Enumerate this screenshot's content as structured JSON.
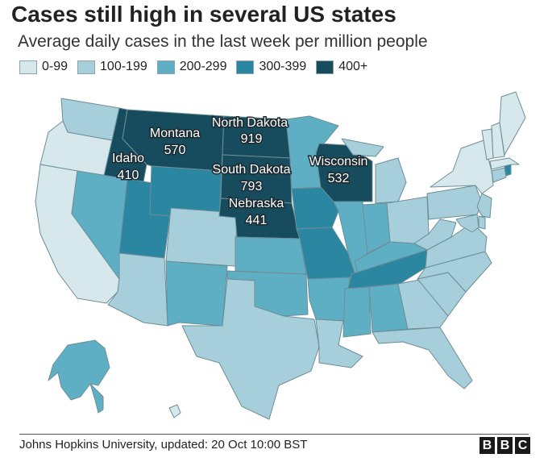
{
  "title": "Cases still high in several US states",
  "subtitle": "Average daily cases in the last week per million people",
  "legend": [
    {
      "label": "0-99",
      "color": "#d6e8ec"
    },
    {
      "label": "100-199",
      "color": "#a6cfdb"
    },
    {
      "label": "200-299",
      "color": "#5fafc4"
    },
    {
      "label": "300-399",
      "color": "#2b86a2"
    },
    {
      "label": "400+",
      "color": "#164c5e"
    }
  ],
  "states": [
    {
      "name": "WA",
      "bin": 1
    },
    {
      "name": "OR",
      "bin": 0
    },
    {
      "name": "CA",
      "bin": 0
    },
    {
      "name": "ID",
      "bin": 4
    },
    {
      "name": "NV",
      "bin": 2
    },
    {
      "name": "UT",
      "bin": 3
    },
    {
      "name": "AZ",
      "bin": 1
    },
    {
      "name": "MT",
      "bin": 4
    },
    {
      "name": "WY",
      "bin": 3
    },
    {
      "name": "CO",
      "bin": 1
    },
    {
      "name": "NM",
      "bin": 2
    },
    {
      "name": "ND",
      "bin": 4
    },
    {
      "name": "SD",
      "bin": 4
    },
    {
      "name": "NE",
      "bin": 4
    },
    {
      "name": "KS",
      "bin": 2
    },
    {
      "name": "OK",
      "bin": 2
    },
    {
      "name": "TX",
      "bin": 1
    },
    {
      "name": "MN",
      "bin": 2
    },
    {
      "name": "IA",
      "bin": 3
    },
    {
      "name": "MO",
      "bin": 3
    },
    {
      "name": "AR",
      "bin": 2
    },
    {
      "name": "LA",
      "bin": 1
    },
    {
      "name": "WI",
      "bin": 4
    },
    {
      "name": "IL",
      "bin": 2
    },
    {
      "name": "MI",
      "bin": 1
    },
    {
      "name": "IN",
      "bin": 2
    },
    {
      "name": "OH",
      "bin": 1
    },
    {
      "name": "KY",
      "bin": 2
    },
    {
      "name": "TN",
      "bin": 3
    },
    {
      "name": "MS",
      "bin": 2
    },
    {
      "name": "AL",
      "bin": 2
    },
    {
      "name": "GA",
      "bin": 1
    },
    {
      "name": "FL",
      "bin": 1
    },
    {
      "name": "SC",
      "bin": 1
    },
    {
      "name": "NC",
      "bin": 1
    },
    {
      "name": "VA",
      "bin": 1
    },
    {
      "name": "WV",
      "bin": 1
    },
    {
      "name": "PA",
      "bin": 1
    },
    {
      "name": "NY",
      "bin": 0
    },
    {
      "name": "NJ",
      "bin": 1
    },
    {
      "name": "DE",
      "bin": 1
    },
    {
      "name": "MD",
      "bin": 1
    },
    {
      "name": "CT",
      "bin": 1
    },
    {
      "name": "RI",
      "bin": 3
    },
    {
      "name": "MA",
      "bin": 0
    },
    {
      "name": "VT",
      "bin": 0
    },
    {
      "name": "NH",
      "bin": 0
    },
    {
      "name": "ME",
      "bin": 0
    },
    {
      "name": "AK",
      "bin": 2
    },
    {
      "name": "HI",
      "bin": 0
    }
  ],
  "callouts": [
    {
      "state": "North Dakota",
      "value": "919"
    },
    {
      "state": "Montana",
      "value": "570"
    },
    {
      "state": "Idaho",
      "value": "410"
    },
    {
      "state": "South Dakota",
      "value": "793"
    },
    {
      "state": "Wisconsin",
      "value": "532"
    },
    {
      "state": "Nebraska",
      "value": "441"
    }
  ],
  "source": "Johns Hopkins University, updated: 20 Oct 10:00 BST",
  "logo": [
    "B",
    "B",
    "C"
  ]
}
